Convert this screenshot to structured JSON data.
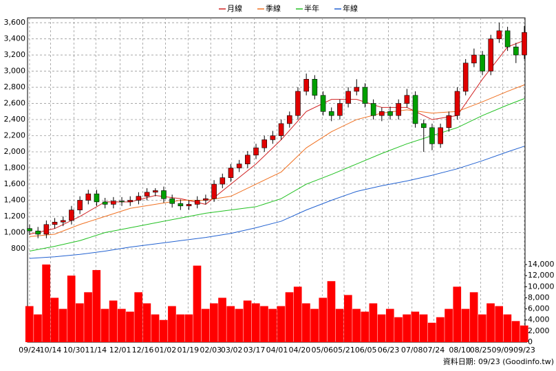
{
  "chart_data": {
    "type": "candlestick",
    "series": [
      {
        "name": "月線",
        "color": "#d02020",
        "x": [
          0,
          3,
          6,
          9,
          12,
          15,
          18,
          21,
          24,
          27,
          30,
          33,
          36,
          39,
          42,
          45,
          48,
          51,
          54,
          57,
          59
        ],
        "values": [
          980,
          1050,
          1200,
          1380,
          1380,
          1460,
          1420,
          1350,
          1600,
          1850,
          2150,
          2500,
          2650,
          2650,
          2550,
          2550,
          2400,
          2450,
          2900,
          3300,
          3380
        ]
      },
      {
        "name": "季線",
        "color": "#f07020",
        "x": [
          0,
          3,
          6,
          9,
          12,
          15,
          18,
          21,
          24,
          27,
          30,
          33,
          36,
          39,
          42,
          45,
          48,
          51,
          54,
          57,
          59
        ],
        "values": [
          950,
          980,
          1100,
          1200,
          1300,
          1350,
          1400,
          1400,
          1450,
          1600,
          1750,
          2050,
          2250,
          2400,
          2480,
          2520,
          2480,
          2500,
          2620,
          2750,
          2830
        ]
      },
      {
        "name": "半年",
        "color": "#20c020",
        "x": [
          0,
          3,
          6,
          9,
          12,
          15,
          18,
          21,
          24,
          27,
          30,
          33,
          36,
          39,
          42,
          45,
          48,
          51,
          54,
          57,
          59
        ],
        "values": [
          770,
          830,
          900,
          1000,
          1060,
          1120,
          1180,
          1240,
          1280,
          1320,
          1420,
          1600,
          1720,
          1850,
          1980,
          2100,
          2200,
          2300,
          2450,
          2580,
          2660
        ]
      },
      {
        "name": "年線",
        "color": "#2060d0",
        "x": [
          0,
          3,
          6,
          9,
          12,
          15,
          18,
          21,
          24,
          27,
          30,
          33,
          36,
          39,
          42,
          45,
          48,
          51,
          54,
          57,
          59
        ],
        "values": [
          680,
          700,
          730,
          770,
          820,
          860,
          900,
          940,
          990,
          1060,
          1140,
          1280,
          1400,
          1510,
          1580,
          1640,
          1710,
          1790,
          1890,
          2000,
          2070
        ]
      }
    ],
    "open": [
      1050,
      1020,
      980,
      1100,
      1130,
      1150,
      1280,
      1400,
      1480,
      1380,
      1350,
      1390,
      1380,
      1400,
      1450,
      1500,
      1520,
      1420,
      1360,
      1330,
      1350,
      1400,
      1420,
      1600,
      1680,
      1800,
      1850,
      1960,
      2050,
      2150,
      2200,
      2350,
      2450,
      2750,
      2900,
      2700,
      2500,
      2450,
      2600,
      2750,
      2800,
      2600,
      2450,
      2500,
      2450,
      2600,
      2700,
      2350,
      2300,
      2100,
      2300,
      2450,
      2750,
      3100,
      3200,
      3000,
      3400,
      3500,
      3300,
      3200
    ],
    "high": [
      1100,
      1070,
      1150,
      1180,
      1200,
      1330,
      1450,
      1530,
      1530,
      1430,
      1440,
      1440,
      1450,
      1500,
      1550,
      1550,
      1570,
      1470,
      1410,
      1400,
      1450,
      1470,
      1650,
      1730,
      1850,
      1900,
      2010,
      2100,
      2200,
      2260,
      2400,
      2500,
      2800,
      2970,
      2950,
      2750,
      2550,
      2650,
      2800,
      2900,
      2850,
      2650,
      2550,
      2560,
      2650,
      2780,
      2750,
      2400,
      2350,
      2350,
      2500,
      2800,
      3150,
      3280,
      3250,
      3450,
      3600,
      3550,
      3350,
      3560
    ],
    "low": [
      970,
      930,
      930,
      1050,
      1080,
      1100,
      1230,
      1350,
      1330,
      1300,
      1300,
      1330,
      1330,
      1350,
      1400,
      1450,
      1370,
      1310,
      1280,
      1280,
      1300,
      1350,
      1380,
      1550,
      1630,
      1750,
      1800,
      1910,
      2000,
      2100,
      2150,
      2300,
      2400,
      2700,
      2650,
      2450,
      2380,
      2400,
      2550,
      2700,
      2550,
      2400,
      2380,
      2400,
      2400,
      2550,
      2300,
      2000,
      2020,
      2050,
      2250,
      2400,
      2700,
      3050,
      2950,
      2950,
      3350,
      3250,
      3100,
      3150
    ],
    "close": [
      1020,
      980,
      1100,
      1130,
      1150,
      1280,
      1400,
      1480,
      1380,
      1350,
      1390,
      1380,
      1400,
      1450,
      1500,
      1520,
      1420,
      1360,
      1330,
      1350,
      1400,
      1420,
      1600,
      1680,
      1800,
      1850,
      1960,
      2050,
      2150,
      2200,
      2350,
      2450,
      2750,
      2900,
      2700,
      2500,
      2450,
      2600,
      2750,
      2800,
      2600,
      2450,
      2500,
      2450,
      2600,
      2700,
      2350,
      2300,
      2100,
      2300,
      2450,
      2750,
      3100,
      3200,
      3000,
      3400,
      3500,
      3300,
      3200,
      3480
    ],
    "up_color": "#e00000",
    "down_color": "#00a000",
    "volume": {
      "color": "#ff0000",
      "values": [
        6500,
        5000,
        14000,
        8000,
        6000,
        12000,
        7000,
        9000,
        13000,
        6000,
        7500,
        6000,
        5500,
        9000,
        7000,
        5000,
        4000,
        6500,
        5000,
        5000,
        13800,
        6000,
        7000,
        8000,
        6500,
        6000,
        7500,
        7000,
        6500,
        6000,
        6500,
        9000,
        10000,
        7000,
        6000,
        8000,
        11000,
        6000,
        8500,
        6000,
        5500,
        7000,
        5000,
        6000,
        4500,
        5000,
        5500,
        5000,
        3500,
        4500,
        6000,
        10000,
        6000,
        9000,
        5000,
        7000,
        6500,
        5000,
        3800,
        3000
      ],
      "ylim": [
        0,
        14870
      ],
      "yticks": [
        0,
        {
          "value": 2000,
          "label": "2,000"
        },
        {
          "value": 4000,
          "label": "4,000"
        },
        {
          "value": 6000,
          "label": "6,000"
        },
        {
          "value": 8000,
          "label": "8,000"
        },
        {
          "value": 10000,
          "label": "10,000"
        },
        {
          "value": 12000,
          "label": "12,000"
        },
        {
          "value": 14000,
          "label": "14,000"
        }
      ]
    },
    "xlim": [
      0,
      59
    ],
    "xticks": [
      {
        "value": 0,
        "label": "09/24"
      },
      {
        "value": 2.5,
        "label": "10/14"
      },
      {
        "value": 5.3,
        "label": "10/30"
      },
      {
        "value": 7.9,
        "label": "11/14"
      },
      {
        "value": 10.8,
        "label": "12/01"
      },
      {
        "value": 13.5,
        "label": "12/16"
      },
      {
        "value": 16.2,
        "label": "01/02"
      },
      {
        "value": 18.9,
        "label": "01/19"
      },
      {
        "value": 21.6,
        "label": "02/03"
      },
      {
        "value": 24.1,
        "label": "03/02"
      },
      {
        "value": 26.8,
        "label": "03/17"
      },
      {
        "value": 29.5,
        "label": "04/01"
      },
      {
        "value": 32.2,
        "label": "04/20"
      },
      {
        "value": 34.9,
        "label": "05/06"
      },
      {
        "value": 37.5,
        "label": "05/21"
      },
      {
        "value": 40.1,
        "label": "06/05"
      },
      {
        "value": 42.8,
        "label": "06/23"
      },
      {
        "value": 45.6,
        "label": "07/08"
      },
      {
        "value": 48.2,
        "label": "07/24"
      },
      {
        "value": 51.3,
        "label": "08/10"
      },
      {
        "value": 53.8,
        "label": "08/25"
      },
      {
        "value": 56.4,
        "label": "09/09"
      },
      {
        "value": 59,
        "label": "09/23"
      }
    ],
    "ylim": [
      664,
      3660
    ],
    "yticks": [
      800,
      {
        "value": 1000,
        "label": "1,000"
      },
      {
        "value": 1200,
        "label": "1,200"
      },
      {
        "value": 1400,
        "label": "1,400"
      },
      {
        "value": 1600,
        "label": "1,600"
      },
      {
        "value": 1800,
        "label": "1,800"
      },
      {
        "value": 2000,
        "label": "2,000"
      },
      {
        "value": 2200,
        "label": "2,200"
      },
      {
        "value": 2400,
        "label": "2,400"
      },
      {
        "value": 2600,
        "label": "2,600"
      },
      {
        "value": 2800,
        "label": "2,800"
      },
      {
        "value": 3000,
        "label": "3,000"
      },
      {
        "value": 3200,
        "label": "3,200"
      },
      {
        "value": 3400,
        "label": "3,400"
      },
      {
        "value": 3600,
        "label": "3,600"
      }
    ],
    "grid": true,
    "footnote": "資料日期: 09/23 (Goodinfo.tw)"
  }
}
